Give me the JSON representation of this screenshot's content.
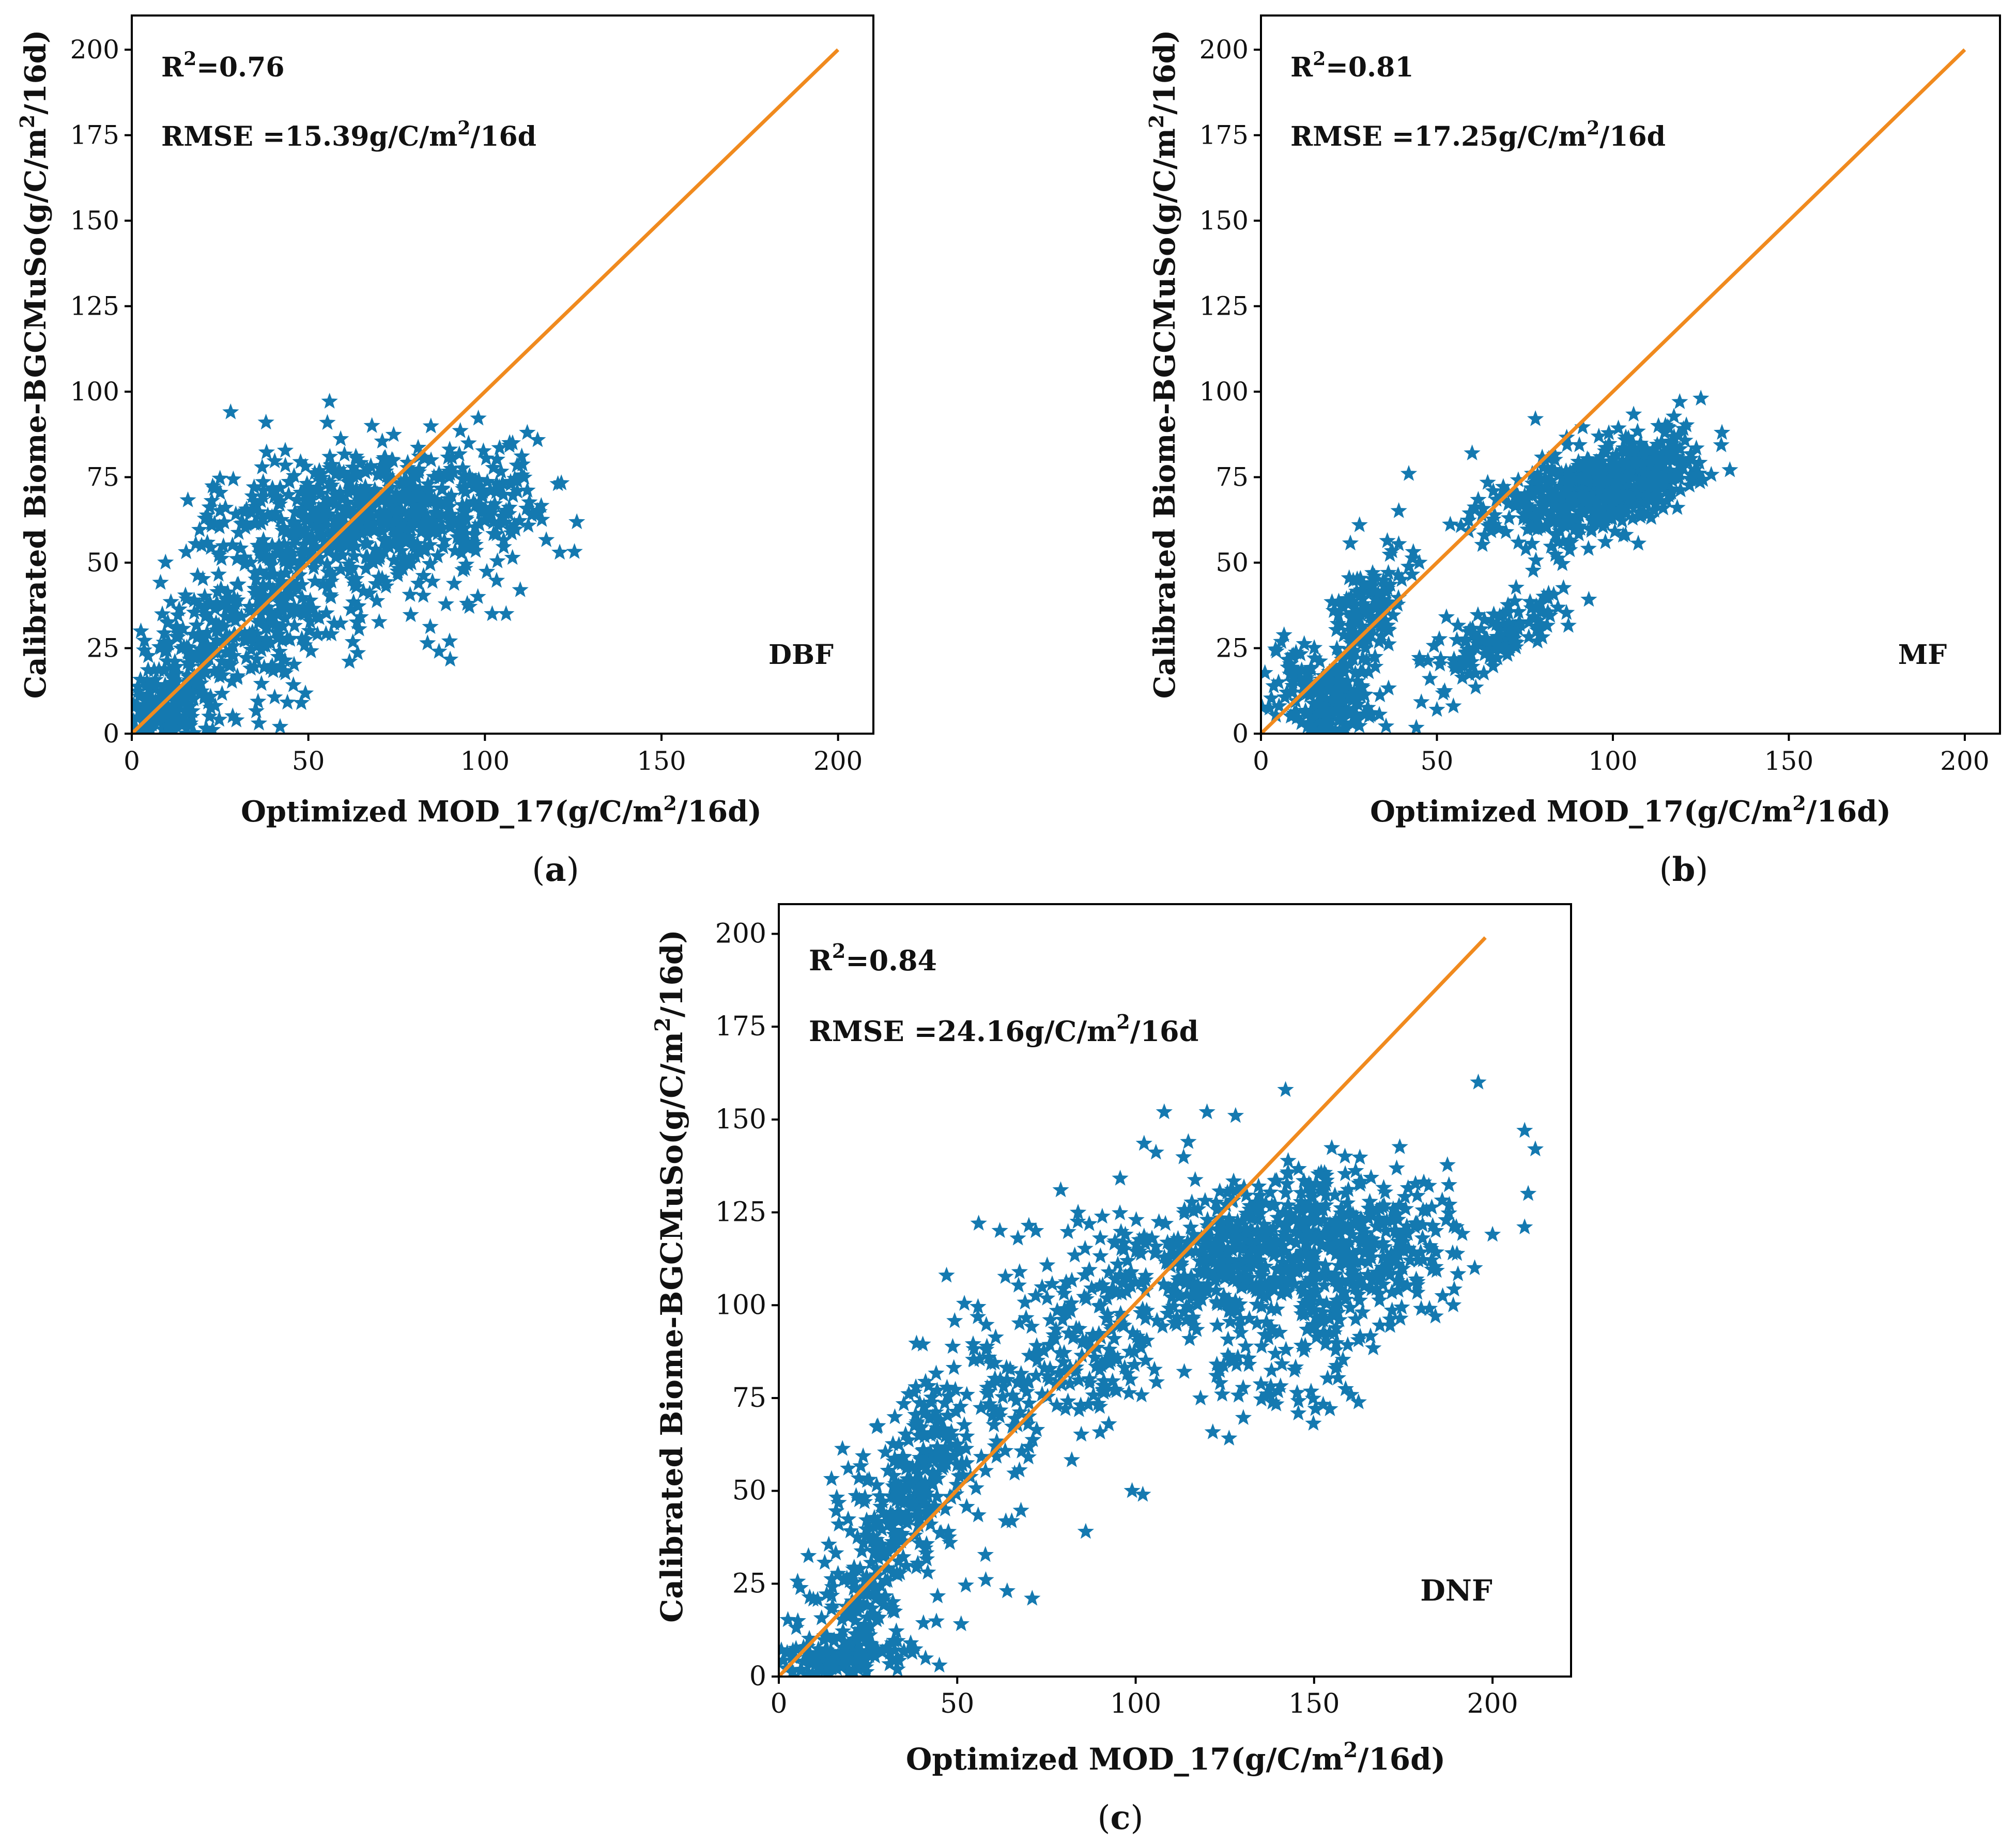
{
  "figure": {
    "colors": {
      "points": "#1479b0",
      "identity_line": "#f08a1e",
      "axes": "#000000",
      "background": "#ffffff"
    },
    "point_marker": "star"
  },
  "chart_data": [
    {
      "id": "a",
      "type": "scatter",
      "panel_label": "(a)",
      "class_label": "DBF",
      "stats": {
        "r2_prefix": "R",
        "r2_sup": "2",
        "r2_value": "=0.76",
        "rmse_prefix": "RMSE =15.39g/C/m",
        "rmse_sup": "2",
        "rmse_suffix": "/16d"
      },
      "xlabel": {
        "prefix": "Optimized MOD_17(g/C/m",
        "sup": "2",
        "suffix": "/16d)"
      },
      "ylabel": {
        "prefix": "Calibrated Biome-BGCMuSo(g/C/m",
        "sup": "2",
        "suffix": "/16d)"
      },
      "xlim": [
        0,
        210
      ],
      "ylim": [
        0,
        210
      ],
      "xticks": [
        0,
        50,
        100,
        150,
        200
      ],
      "yticks": [
        0,
        25,
        50,
        75,
        100,
        125,
        150,
        175,
        200
      ],
      "xtick_labels": [
        "0",
        "50",
        "100",
        "150",
        "200"
      ],
      "ytick_labels": [
        "0",
        "25",
        "50",
        "75",
        "100",
        "125",
        "150",
        "175",
        "200"
      ],
      "identity_line": [
        [
          0,
          0
        ],
        [
          200,
          200
        ]
      ],
      "clusters": [
        {
          "cx": 8,
          "cy": 5,
          "sx": 6,
          "sy": 7,
          "n": 160,
          "corr": 0.2
        },
        {
          "cx": 15,
          "cy": 22,
          "sx": 8,
          "sy": 11,
          "n": 140,
          "corr": 0.4
        },
        {
          "cx": 35,
          "cy": 32,
          "sx": 11,
          "sy": 13,
          "n": 160,
          "corr": 0.5
        },
        {
          "cx": 52,
          "cy": 63,
          "sx": 15,
          "sy": 9,
          "n": 330,
          "corr": 0.1
        },
        {
          "cx": 80,
          "cy": 65,
          "sx": 15,
          "sy": 9,
          "n": 300,
          "corr": 0.1
        },
        {
          "cx": 105,
          "cy": 67,
          "sx": 7,
          "sy": 10,
          "n": 70,
          "corr": 0.0
        },
        {
          "cx": 60,
          "cy": 40,
          "sx": 14,
          "sy": 12,
          "n": 90,
          "corr": 0.3
        }
      ],
      "extra_points": [
        [
          28,
          94
        ],
        [
          38,
          91
        ],
        [
          68,
          90
        ],
        [
          112,
          88
        ],
        [
          107,
          85
        ],
        [
          110,
          42
        ],
        [
          106,
          35
        ],
        [
          36,
          3
        ],
        [
          42,
          2
        ],
        [
          87,
          24
        ],
        [
          48,
          9
        ],
        [
          22,
          5
        ],
        [
          95,
          38
        ],
        [
          90,
          27
        ],
        [
          98,
          40
        ]
      ],
      "seed": 11
    },
    {
      "id": "b",
      "type": "scatter",
      "panel_label": "(b)",
      "class_label": "MF",
      "stats": {
        "r2_prefix": "R",
        "r2_sup": "2",
        "r2_value": "=0.81",
        "rmse_prefix": "RMSE =17.25g/C/m",
        "rmse_sup": "2",
        "rmse_suffix": "/16d"
      },
      "xlabel": {
        "prefix": "Optimized MOD_17(g/C/m",
        "sup": "2",
        "suffix": "/16d)"
      },
      "ylabel": {
        "prefix": "Calibrated Biome-BGCMuSo(g/C/m",
        "sup": "2",
        "suffix": "/16d)"
      },
      "xlim": [
        0,
        210
      ],
      "ylim": [
        0,
        210
      ],
      "xticks": [
        0,
        50,
        100,
        150,
        200
      ],
      "yticks": [
        0,
        25,
        50,
        75,
        100,
        125,
        150,
        175,
        200
      ],
      "xtick_labels": [
        "0",
        "50",
        "100",
        "150",
        "200"
      ],
      "ytick_labels": [
        "0",
        "25",
        "50",
        "75",
        "100",
        "125",
        "150",
        "175",
        "200"
      ],
      "identity_line": [
        [
          0,
          0
        ],
        [
          200,
          200
        ]
      ],
      "clusters": [
        {
          "cx": 92,
          "cy": 70,
          "sx": 13,
          "sy": 7,
          "n": 520,
          "corr": 0.4
        },
        {
          "cx": 110,
          "cy": 76,
          "sx": 8,
          "sy": 6,
          "n": 140,
          "corr": 0.3
        },
        {
          "cx": 28,
          "cy": 30,
          "sx": 6,
          "sy": 11,
          "n": 170,
          "corr": 0.6
        },
        {
          "cx": 20,
          "cy": 6,
          "sx": 8,
          "sy": 6,
          "n": 150,
          "corr": 0.2
        },
        {
          "cx": 68,
          "cy": 28,
          "sx": 9,
          "sy": 7,
          "n": 140,
          "corr": 0.6
        },
        {
          "cx": 12,
          "cy": 18,
          "sx": 5,
          "sy": 5,
          "n": 35,
          "corr": 0.0
        }
      ],
      "extra_points": [
        [
          78,
          92
        ],
        [
          119,
          97
        ],
        [
          125,
          98
        ],
        [
          131,
          88
        ],
        [
          42,
          76
        ],
        [
          60,
          82
        ],
        [
          28,
          61
        ],
        [
          50,
          7
        ],
        [
          48,
          16
        ],
        [
          9,
          14
        ],
        [
          5,
          15
        ],
        [
          55,
          20
        ],
        [
          40,
          45
        ],
        [
          45,
          50
        ]
      ],
      "seed": 23
    },
    {
      "id": "c",
      "type": "scatter",
      "panel_label": "(c)",
      "class_label": "DNF",
      "stats": {
        "r2_prefix": "R",
        "r2_sup": "2",
        "r2_value": "=0.84",
        "rmse_prefix": "RMSE =24.16g/C/m",
        "rmse_sup": "2",
        "rmse_suffix": "/16d"
      },
      "xlabel": {
        "prefix": "Optimized MOD_17(g/C/m",
        "sup": "2",
        "suffix": "/16d)"
      },
      "ylabel": {
        "prefix": "Calibrated Biome-BGCMuSo(g/C/m",
        "sup": "2",
        "suffix": "/16d)"
      },
      "xlim": [
        0,
        222
      ],
      "ylim": [
        0,
        208
      ],
      "xticks": [
        0,
        50,
        100,
        150,
        200
      ],
      "yticks": [
        0,
        25,
        50,
        75,
        100,
        125,
        150,
        175,
        200
      ],
      "xtick_labels": [
        "0",
        "50",
        "100",
        "150",
        "200"
      ],
      "ytick_labels": [
        "0",
        "25",
        "50",
        "75",
        "100",
        "125",
        "150",
        "175",
        "200"
      ],
      "identity_line": [
        [
          0,
          0
        ],
        [
          198,
          199
        ]
      ],
      "clusters": [
        {
          "cx": 158,
          "cy": 116,
          "sx": 14,
          "sy": 11,
          "n": 420,
          "corr": 0.1
        },
        {
          "cx": 128,
          "cy": 113,
          "sx": 13,
          "sy": 10,
          "n": 300,
          "corr": 0.2
        },
        {
          "cx": 92,
          "cy": 95,
          "sx": 12,
          "sy": 16,
          "n": 190,
          "corr": 0.5
        },
        {
          "cx": 36,
          "cy": 50,
          "sx": 9,
          "sy": 13,
          "n": 260,
          "corr": 0.5
        },
        {
          "cx": 15,
          "cy": 4,
          "sx": 10,
          "sy": 4,
          "n": 160,
          "corr": 0.2
        },
        {
          "cx": 22,
          "cy": 22,
          "sx": 10,
          "sy": 10,
          "n": 110,
          "corr": 0.3
        },
        {
          "cx": 62,
          "cy": 78,
          "sx": 12,
          "sy": 18,
          "n": 110,
          "corr": 0.4
        },
        {
          "cx": 140,
          "cy": 82,
          "sx": 12,
          "sy": 8,
          "n": 70,
          "corr": 0.1
        }
      ],
      "extra_points": [
        [
          196,
          160
        ],
        [
          142,
          158
        ],
        [
          120,
          152
        ],
        [
          108,
          152
        ],
        [
          128,
          151
        ],
        [
          209,
          147
        ],
        [
          212,
          142
        ],
        [
          210,
          130
        ],
        [
          209,
          121
        ],
        [
          200,
          119
        ],
        [
          195,
          110
        ],
        [
          64,
          23
        ],
        [
          71,
          21
        ],
        [
          58,
          26
        ],
        [
          45,
          3
        ],
        [
          99,
          50
        ],
        [
          102,
          49
        ],
        [
          86,
          39
        ],
        [
          67,
          118
        ],
        [
          72,
          120
        ],
        [
          47,
          108
        ],
        [
          56,
          122
        ],
        [
          79,
          131
        ],
        [
          189,
          100
        ],
        [
          184,
          97
        ]
      ],
      "seed": 37
    }
  ]
}
